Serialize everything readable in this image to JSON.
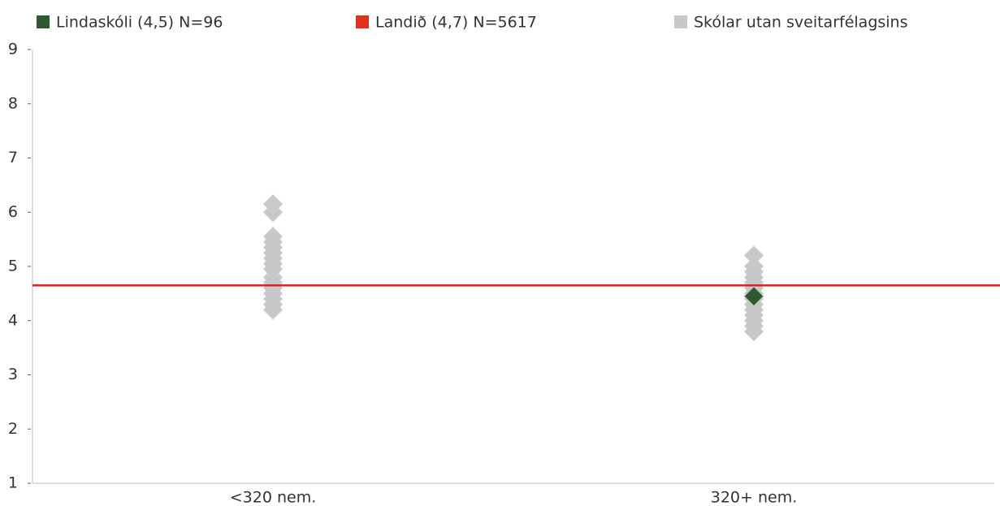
{
  "chart_data": {
    "type": "strip",
    "categories": [
      "<320 nem.",
      "320+ nem."
    ],
    "ylim": [
      1,
      9
    ],
    "yticks": [
      1,
      2,
      3,
      4,
      5,
      6,
      7,
      8,
      9
    ],
    "series": [
      {
        "name": "Lindaskóli (4,5) N=96",
        "color": "#2d5a31",
        "values": [
          null,
          4.45
        ]
      },
      {
        "name": "Landið (4,7) N=5617",
        "color": "#e0321a",
        "line_color": "#e01e1e",
        "kind": "hline",
        "value": 4.65
      },
      {
        "name": "Skólar utan sveitarfélagsins",
        "color": "#c8c8c8",
        "values": [
          [
            6.15,
            6.0,
            5.55,
            5.45,
            5.35,
            5.25,
            5.15,
            5.05,
            4.95,
            4.8,
            4.7,
            4.6,
            4.5,
            4.4,
            4.3,
            4.2
          ],
          [
            5.2,
            5.0,
            4.9,
            4.8,
            4.7,
            4.6,
            4.5,
            4.4,
            4.3,
            4.2,
            4.1,
            4.0,
            3.9,
            3.8
          ]
        ]
      }
    ]
  }
}
